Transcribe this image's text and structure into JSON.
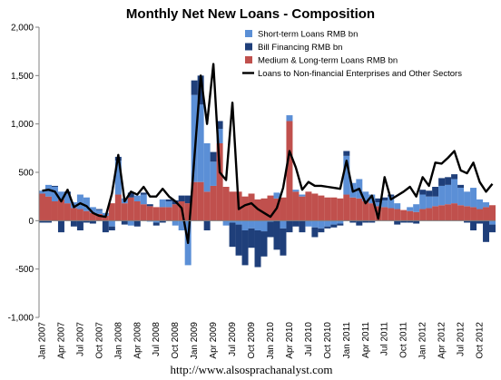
{
  "chart_data": {
    "type": "bar",
    "subtype": "stacked-bar-with-line",
    "title": "Monthly Net New Loans - Composition",
    "xlabel": "",
    "ylabel": "",
    "ylim": [
      -1000,
      2000
    ],
    "yticks": [
      -1000,
      -500,
      0,
      500,
      1000,
      1500,
      2000
    ],
    "ytick_labels": [
      "-1,000",
      "-500",
      "0",
      "500",
      "1,000",
      "1,500",
      "2,000"
    ],
    "xtick_labels": [
      "Jan 2007",
      "Apr 2007",
      "Jul 2007",
      "Oct 2007",
      "Jan 2008",
      "Apr 2008",
      "Jul 2008",
      "Oct 2008",
      "Jan 2009",
      "Apr 2009",
      "Jul 2009",
      "Oct 2009",
      "Jan 2010",
      "Apr 2010",
      "Jul 2010",
      "Oct 2010",
      "Jan 2011",
      "Apr 2011",
      "Jul 2011",
      "Oct 2011",
      "Jan 2012",
      "Apr 2012",
      "Jul 2012",
      "Oct 2012"
    ],
    "grid": false,
    "legend_position": "top-right",
    "footer": "http://www.alsosprachanalyst.com",
    "colors": {
      "short_term": "#5b8fd6",
      "bill": "#1f3f7a",
      "medium_long": "#c0504d",
      "line": "#000000"
    },
    "series": [
      {
        "name": "Short-term Loans RMB bn",
        "values": [
          30,
          120,
          150,
          80,
          100,
          60,
          150,
          140,
          60,
          40,
          30,
          -60,
          350,
          50,
          -50,
          60,
          100,
          -10,
          -20,
          80,
          60,
          -50,
          -100,
          -460,
          900,
          800,
          500,
          250,
          150,
          -50,
          -20,
          -40,
          -100,
          -80,
          -100,
          -110,
          -10,
          60,
          -80,
          60,
          20,
          20,
          -60,
          -70,
          -80,
          -60,
          -40,
          -30,
          400,
          150,
          200,
          100,
          90,
          40,
          70,
          120,
          60,
          0,
          40,
          80,
          150,
          120,
          100,
          200,
          200,
          250,
          180,
          150,
          200,
          100,
          50,
          -40
        ]
      },
      {
        "name": "Bill Financing RMB bn",
        "values": [
          -20,
          -20,
          10,
          -120,
          20,
          -60,
          -100,
          -20,
          -30,
          10,
          -120,
          -40,
          40,
          -40,
          50,
          -60,
          20,
          20,
          -30,
          -20,
          20,
          40,
          60,
          80,
          150,
          300,
          -100,
          100,
          80,
          0,
          -250,
          -320,
          -360,
          -200,
          -380,
          -260,
          -160,
          -300,
          -280,
          -120,
          -60,
          -120,
          0,
          -100,
          -40,
          -20,
          -30,
          -20,
          50,
          -20,
          -50,
          -20,
          -20,
          40,
          30,
          20,
          -40,
          -20,
          -20,
          -30,
          50,
          60,
          100,
          80,
          80,
          50,
          30,
          -20,
          -100,
          -30,
          -220,
          -80
        ]
      },
      {
        "name": "Medium & Long-term Loans RMB bn",
        "values": [
          280,
          250,
          200,
          220,
          180,
          130,
          120,
          100,
          80,
          70,
          50,
          180,
          270,
          180,
          240,
          200,
          170,
          150,
          140,
          140,
          140,
          170,
          200,
          180,
          400,
          400,
          300,
          360,
          800,
          350,
          300,
          300,
          250,
          280,
          220,
          230,
          260,
          230,
          240,
          1030,
          300,
          250,
          300,
          280,
          260,
          240,
          240,
          230,
          270,
          240,
          230,
          200,
          180,
          150,
          140,
          130,
          120,
          110,
          100,
          90,
          120,
          130,
          150,
          160,
          170,
          180,
          160,
          150,
          140,
          120,
          140,
          160
        ]
      },
      {
        "name": "Loans to Non-financial Enterprises and Other Sectors",
        "type": "line",
        "values": [
          310,
          320,
          300,
          200,
          320,
          140,
          180,
          150,
          80,
          50,
          40,
          280,
          680,
          200,
          300,
          270,
          350,
          250,
          250,
          330,
          250,
          200,
          130,
          -230,
          650,
          1500,
          1000,
          1620,
          500,
          420,
          1220,
          120,
          160,
          180,
          120,
          80,
          40,
          130,
          340,
          720,
          550,
          320,
          400,
          360,
          360,
          350,
          340,
          330,
          620,
          300,
          330,
          180,
          260,
          20,
          450,
          220,
          260,
          300,
          350,
          250,
          450,
          360,
          600,
          590,
          650,
          720,
          520,
          490,
          600,
          400,
          300,
          380
        ]
      }
    ]
  }
}
